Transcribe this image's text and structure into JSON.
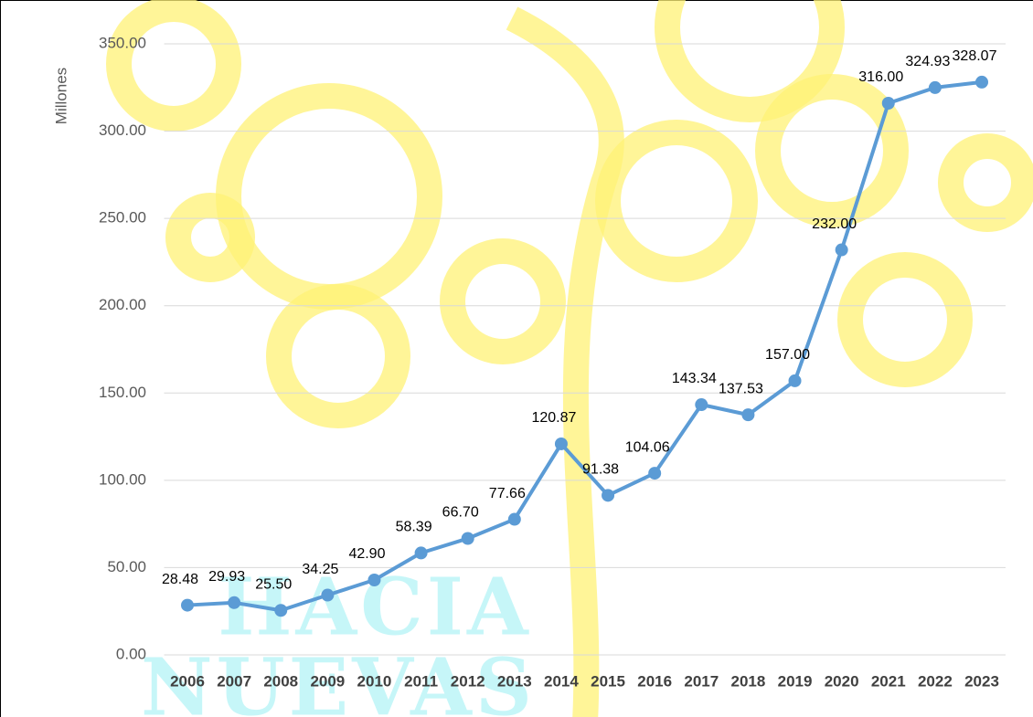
{
  "watermark": [
    "HACIA",
    "NUEVAS"
  ],
  "chart_data": {
    "type": "line",
    "y_label": "Millones",
    "categories": [
      "2006",
      "2007",
      "2008",
      "2009",
      "2010",
      "2011",
      "2012",
      "2013",
      "2014",
      "2015",
      "2016",
      "2017",
      "2018",
      "2019",
      "2020",
      "2021",
      "2022",
      "2023"
    ],
    "series": [
      {
        "name": "Millones",
        "color": "#5b9bd5",
        "values": [
          28.48,
          29.93,
          25.5,
          34.25,
          42.9,
          58.39,
          66.7,
          77.66,
          120.87,
          91.38,
          104.06,
          143.34,
          137.53,
          157.0,
          232.0,
          316.0,
          324.93,
          328.07
        ],
        "value_labels": [
          "28.48",
          "29.93",
          "25.50",
          "34.25",
          "42.90",
          "58.39",
          "66.70",
          "77.66",
          "120.87",
          "91.38",
          "104.06",
          "143.34",
          "137.53",
          "157.00",
          "232.00",
          "316.00",
          "324.93",
          "328.07"
        ]
      }
    ],
    "ylim": [
      0,
      350
    ],
    "yticks": [
      {
        "value": 0,
        "label": "0.00"
      },
      {
        "value": 50,
        "label": "50.00"
      },
      {
        "value": 100,
        "label": "100.00"
      },
      {
        "value": 150,
        "label": "150.00"
      },
      {
        "value": 200,
        "label": "200.00"
      },
      {
        "value": 250,
        "label": "250.00"
      },
      {
        "value": 300,
        "label": "300.00"
      },
      {
        "value": 350,
        "label": "350.00"
      }
    ],
    "grid": true
  }
}
